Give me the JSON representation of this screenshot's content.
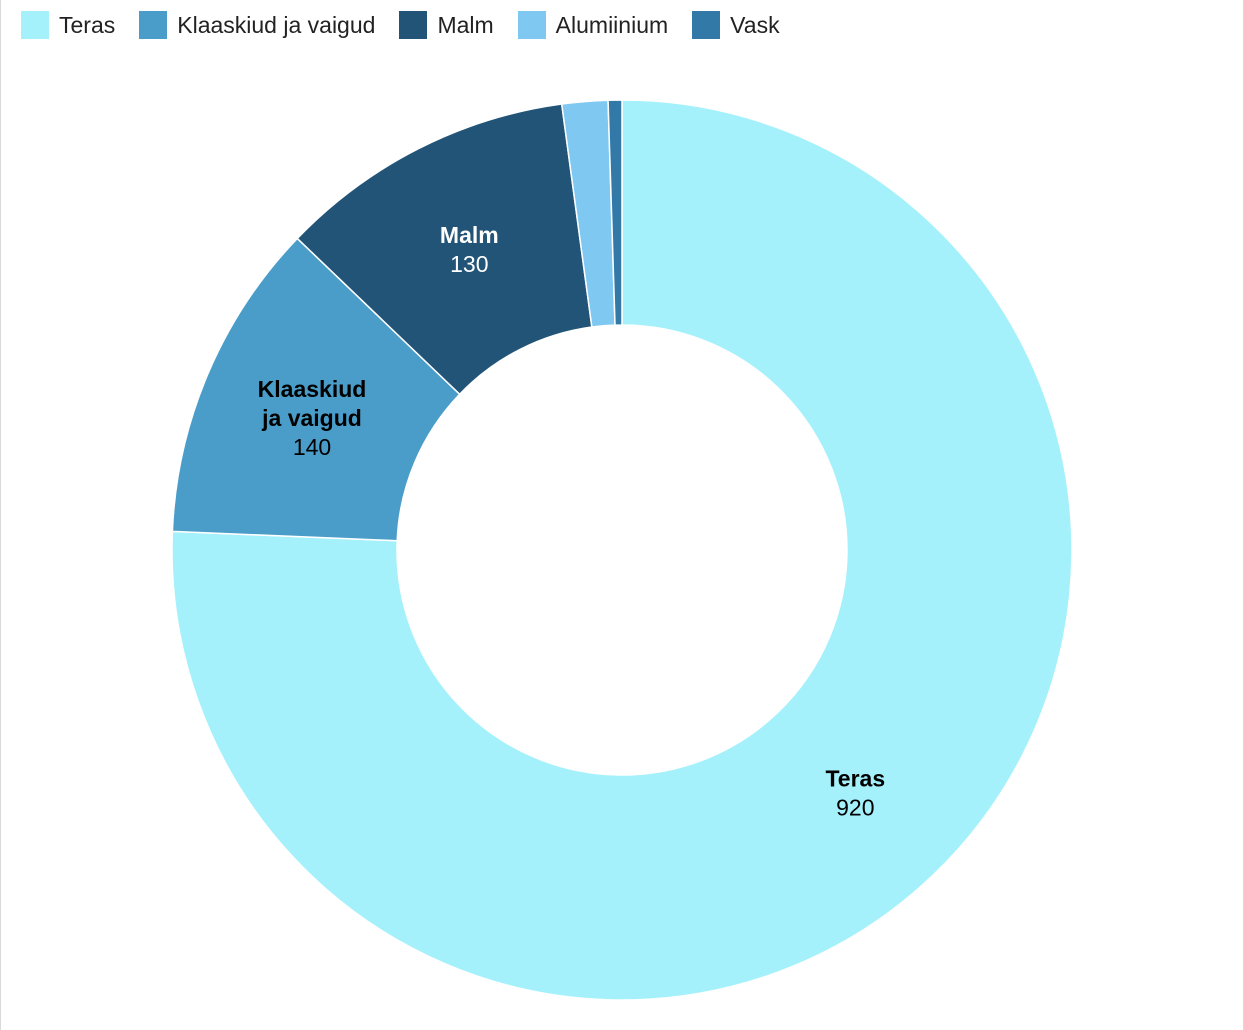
{
  "chart_data": {
    "type": "pie",
    "variant": "donut",
    "categories": [
      "Teras",
      "Klaaskiud ja vaigud",
      "Malm",
      "Alumiinium",
      "Vask"
    ],
    "values": [
      920,
      140,
      130,
      20,
      6
    ],
    "colors": [
      "#a4f1fc",
      "#4a9dc9",
      "#225478",
      "#7ec8f2",
      "#3379a8"
    ],
    "label_text_colors": [
      "#000000",
      "#000000",
      "#ffffff",
      "#000000",
      "#ffffff"
    ],
    "slice_labels": [
      {
        "name_lines": [
          "Teras"
        ],
        "value": "920"
      },
      {
        "name_lines": [
          "Klaaskiud",
          "ja vaigud"
        ],
        "value": "140"
      },
      {
        "name_lines": [
          "Malm"
        ],
        "value": "130"
      },
      null,
      null
    ],
    "legend_position": "top-left",
    "start_angle_deg": 0,
    "direction": "clockwise"
  },
  "legend": {
    "items": [
      {
        "label": "Teras",
        "color": "#a4f1fc"
      },
      {
        "label": "Klaaskiud ja vaigud",
        "color": "#4a9dc9"
      },
      {
        "label": "Malm",
        "color": "#225478"
      },
      {
        "label": "Alumiinium",
        "color": "#7ec8f2"
      },
      {
        "label": "Vask",
        "color": "#3379a8"
      }
    ]
  }
}
